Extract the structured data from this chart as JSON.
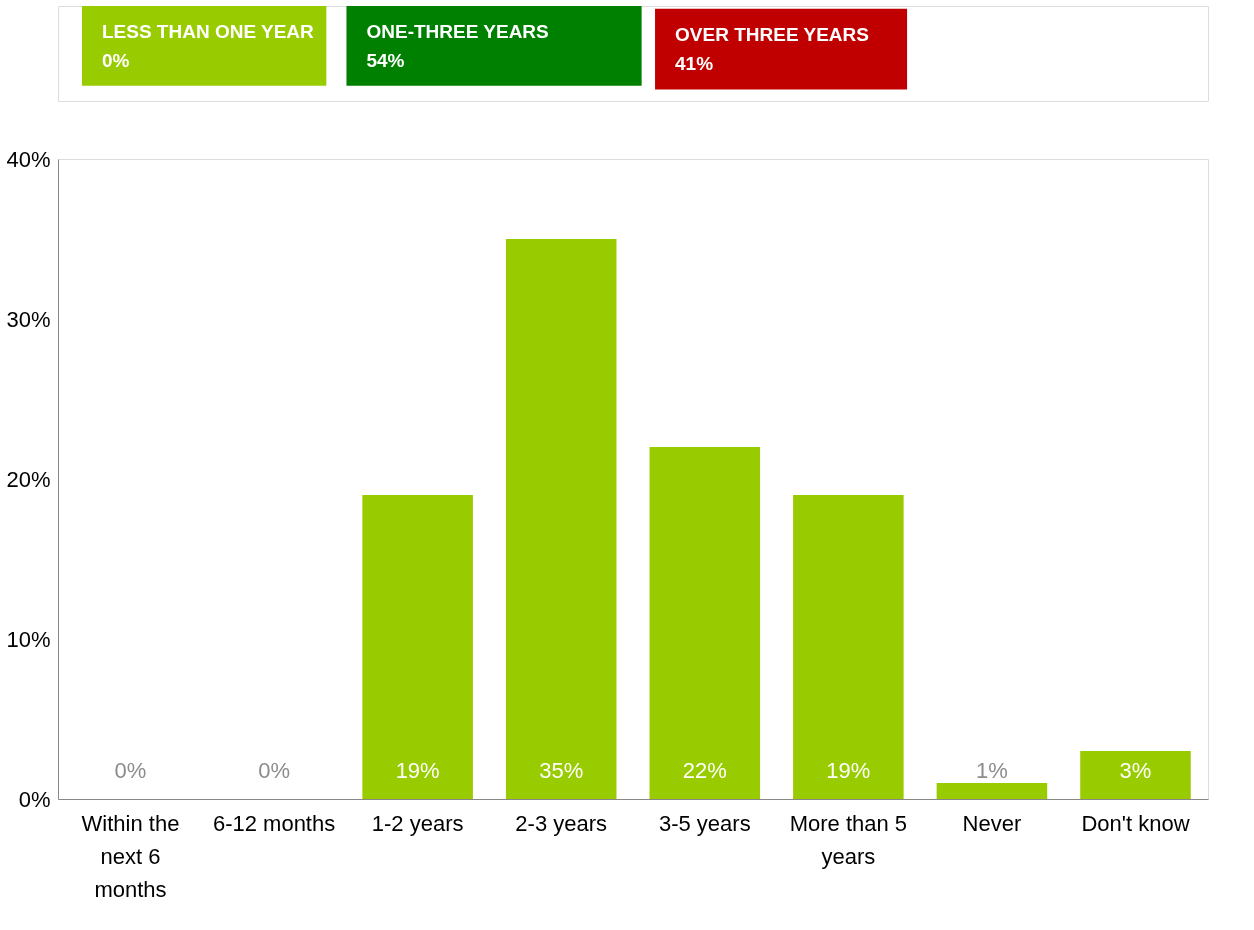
{
  "chart_data": {
    "type": "bar",
    "categories": [
      "Within the next 6 months",
      "6-12 months",
      "1-2 years",
      "2-3 years",
      "3-5 years",
      "More than 5 years",
      "Never",
      "Don't know"
    ],
    "values": [
      0,
      0,
      19,
      35,
      22,
      19,
      1,
      3
    ],
    "color": "#99cc00",
    "value_labels": [
      "0%",
      "0%",
      "19%",
      "35%",
      "22%",
      "19%",
      "1%",
      "3%"
    ],
    "ylim": [
      0,
      40
    ],
    "yticks": [
      {
        "value": 0,
        "label": "0%"
      },
      {
        "value": 10,
        "label": "10%"
      },
      {
        "value": 20,
        "label": "20%"
      },
      {
        "value": 30,
        "label": "30%"
      },
      {
        "value": 40,
        "label": "40%"
      }
    ],
    "grid": false,
    "annotations": [
      "LESS THAN ONE YEAR\n0%",
      "ONE-THREE YEARS\n54%",
      "OVER THREE YEARS\n41%"
    ]
  }
}
